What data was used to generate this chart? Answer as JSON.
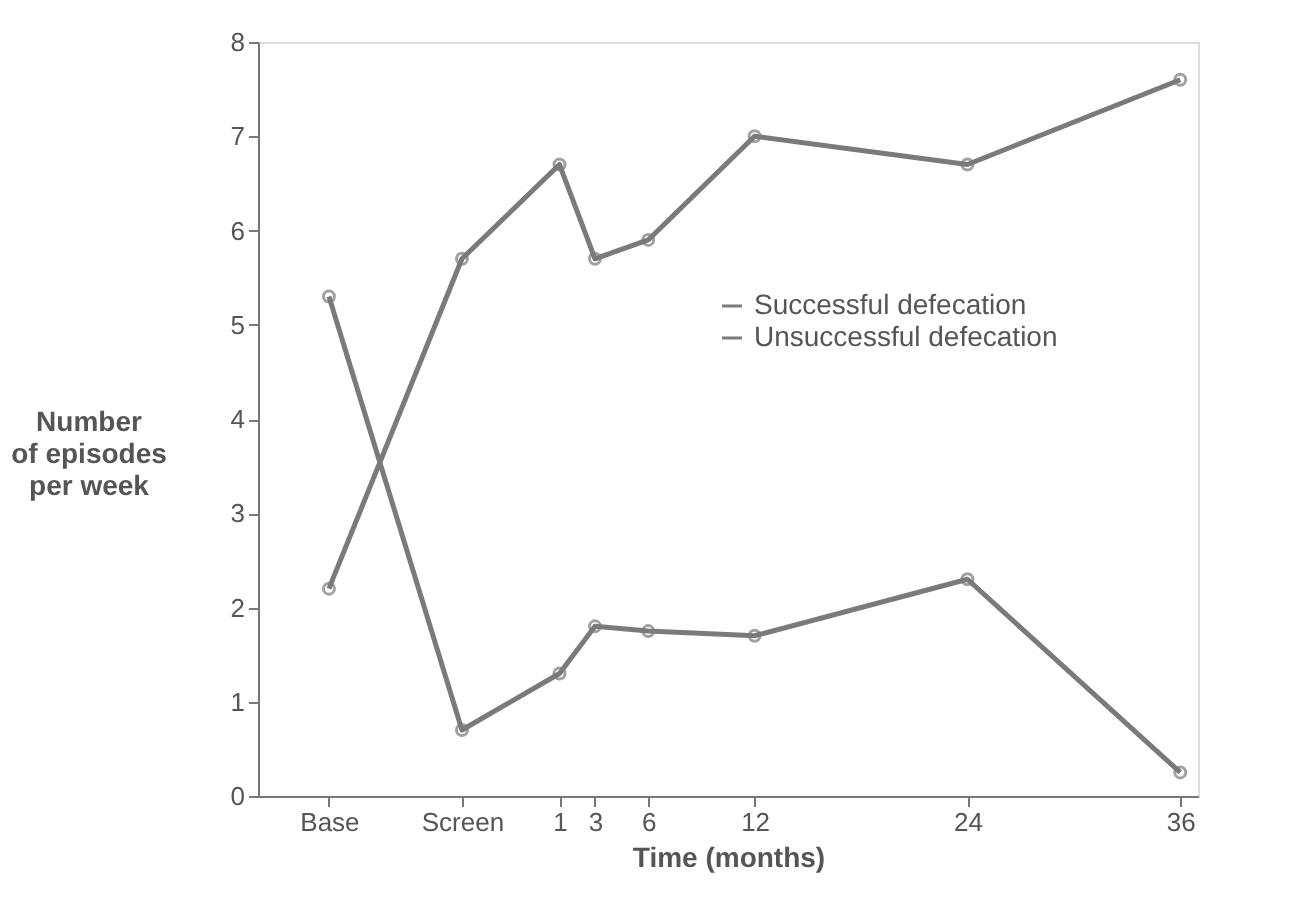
{
  "chart_data": {
    "type": "line",
    "xlabel": "Time (months)",
    "ylabel": "Number\nof episodes\nper week",
    "x": [
      -12,
      -4.5,
      1,
      3,
      6,
      12,
      24,
      36
    ],
    "series": [
      {
        "name": "Successful defecation",
        "color": "#7a7a7a",
        "values": [
          2.2,
          5.7,
          6.7,
          5.7,
          5.9,
          7.0,
          6.7,
          7.6
        ]
      },
      {
        "name": "Unsuccessful defecation",
        "color": "#7a7a7a",
        "values": [
          5.3,
          0.7,
          1.3,
          1.8,
          1.75,
          1.7,
          2.3,
          0.25
        ]
      }
    ],
    "xlim": [
      -16,
      37
    ],
    "xticks": [
      {
        "value": -12,
        "label": "Base"
      },
      {
        "value": -4.5,
        "label": "Screen"
      },
      1,
      3,
      6,
      12,
      24,
      36
    ],
    "ylim": [
      0,
      8
    ],
    "yticks": [
      0,
      1,
      2,
      3,
      4,
      5,
      6,
      7,
      8
    ],
    "grid": false,
    "legend": "top right",
    "marker": "circle",
    "line_style": "solid"
  }
}
